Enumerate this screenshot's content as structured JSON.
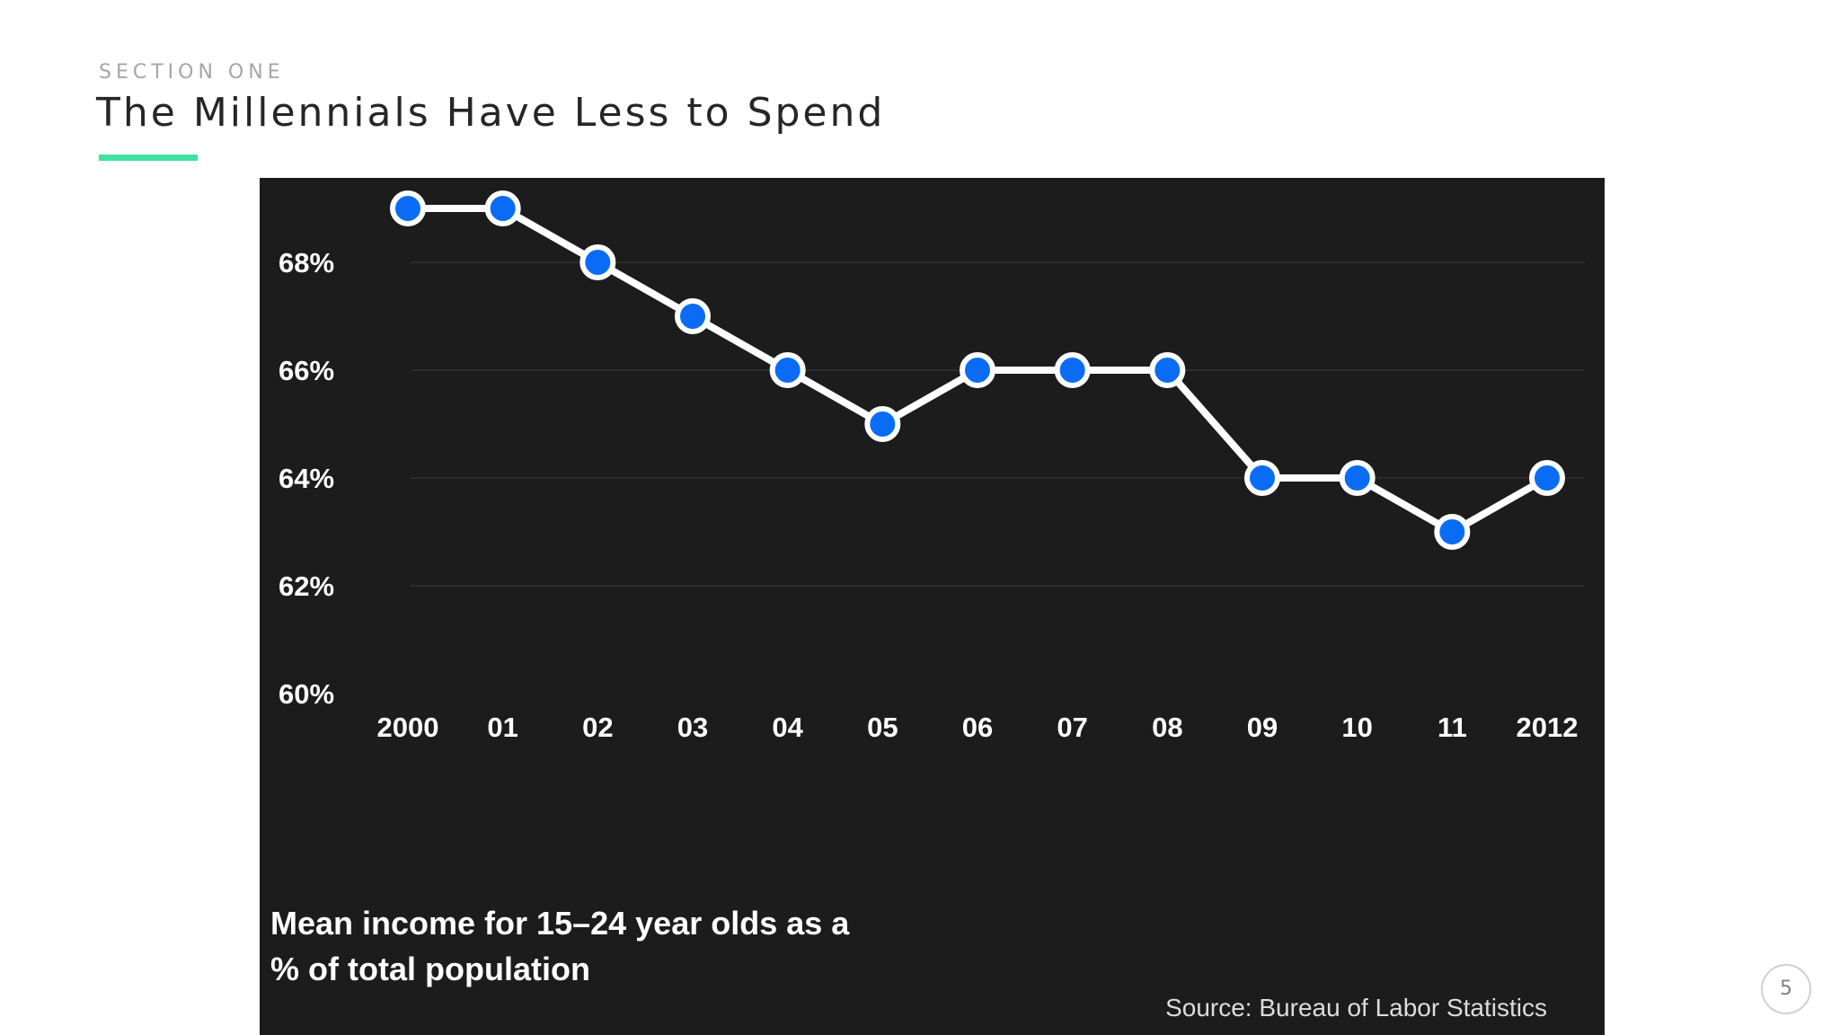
{
  "slide": {
    "section_label": "SECTION ONE",
    "title": "The Millennials Have Less to Spend",
    "accent_color": "#3ee2a1",
    "page_number": "5"
  },
  "chart_data": {
    "type": "line",
    "title": "",
    "caption_lines": [
      "Mean income for 15–24 year olds as a",
      "% of total population"
    ],
    "source": "Source: Bureau of Labor Statistics",
    "categories": [
      "2000",
      "01",
      "02",
      "03",
      "04",
      "05",
      "06",
      "07",
      "08",
      "09",
      "10",
      "11",
      "2012"
    ],
    "series": [
      {
        "values": [
          69,
          69,
          68,
          67,
          66,
          65,
          66,
          66,
          66,
          64,
          64,
          63,
          64
        ]
      }
    ],
    "ylim": [
      60,
      69
    ],
    "yticks": [
      60,
      62,
      64,
      66,
      68
    ],
    "ytick_labels": [
      "60%",
      "62%",
      "64%",
      "66%",
      "68%"
    ],
    "grid": true,
    "background_color": "#1c1c1c",
    "line_color": "#ffffff",
    "marker_fill": "#0a6cf5",
    "marker_stroke": "#ffffff"
  }
}
